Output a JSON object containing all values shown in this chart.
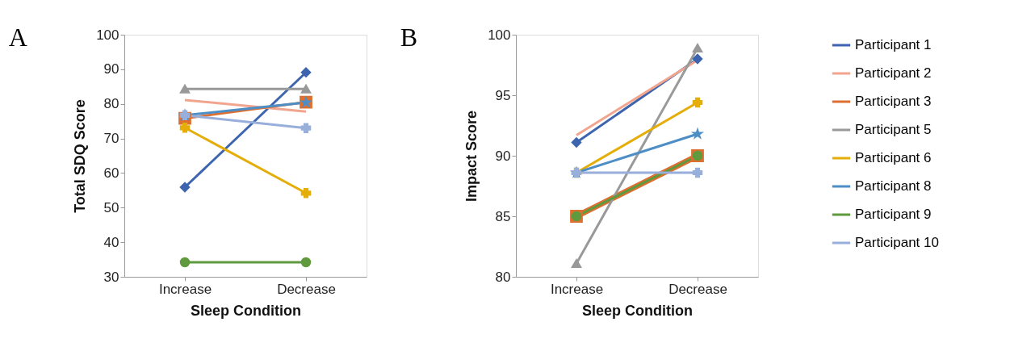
{
  "chart_data": [
    {
      "type": "line",
      "title": "A",
      "xlabel": "Sleep Condition",
      "ylabel": "Total SDQ Score",
      "categories": [
        "Increase",
        "Decrease"
      ],
      "ylim": [
        30,
        100
      ],
      "yticks": [
        30,
        40,
        50,
        60,
        70,
        80,
        90,
        100
      ],
      "grid": false,
      "legend": false,
      "series": [
        {
          "color": "#3d64ae",
          "marker": "diamond",
          "values": [
            55.9,
            89.1
          ]
        },
        {
          "color": "#f2a58e",
          "marker": "none",
          "values": [
            81.1,
            77.8
          ]
        },
        {
          "color": "#dd7031",
          "marker": "square",
          "values": [
            75.8,
            80.5
          ]
        },
        {
          "color": "#999999",
          "marker": "triangle",
          "values": [
            84.3,
            84.3
          ]
        },
        {
          "color": "#e5ad07",
          "marker": "cross",
          "values": [
            73.1,
            54.2
          ]
        },
        {
          "color": "#4d8ec6",
          "marker": "star",
          "values": [
            76.7,
            80.4
          ]
        },
        {
          "color": "#5f9a3e",
          "marker": "circle",
          "values": [
            34.2,
            34.2
          ]
        },
        {
          "color": "#98aedb",
          "marker": "cross",
          "values": [
            76.7,
            73.0
          ]
        }
      ]
    },
    {
      "type": "line",
      "title": "B",
      "xlabel": "Sleep Condition",
      "ylabel": "Impact Score",
      "categories": [
        "Increase",
        "Decrease"
      ],
      "ylim": [
        80,
        100
      ],
      "yticks": [
        80,
        85,
        90,
        95,
        100
      ],
      "grid": false,
      "legend": "right",
      "series": [
        {
          "name": "Participant 1",
          "color": "#3d64ae",
          "marker": "diamond",
          "values": [
            91.1,
            98.0
          ]
        },
        {
          "name": "Participant 2",
          "color": "#f2a58e",
          "marker": "none",
          "values": [
            91.7,
            97.9
          ]
        },
        {
          "name": "Participant 3",
          "color": "#dd7031",
          "marker": "square",
          "values": [
            85.0,
            90.0
          ]
        },
        {
          "name": "Participant 5",
          "color": "#999999",
          "marker": "triangle",
          "values": [
            81.1,
            98.9
          ]
        },
        {
          "name": "Participant 6",
          "color": "#e5ad07",
          "marker": "cross",
          "values": [
            88.6,
            94.4
          ]
        },
        {
          "name": "Participant 8",
          "color": "#4d8ec6",
          "marker": "star",
          "values": [
            88.6,
            91.8
          ]
        },
        {
          "name": "Participant 9",
          "color": "#5f9a3e",
          "marker": "circle",
          "values": [
            85.0,
            90.0
          ]
        },
        {
          "name": "Participant 10",
          "color": "#98aedb",
          "marker": "cross",
          "values": [
            88.6,
            88.6
          ]
        }
      ]
    }
  ]
}
